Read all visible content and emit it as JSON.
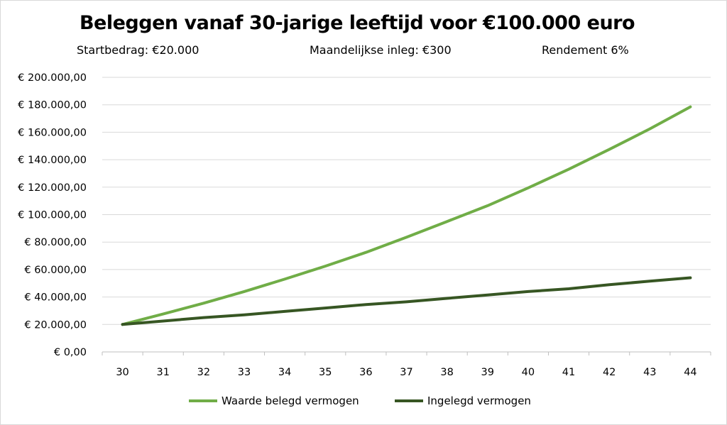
{
  "chart_data": {
    "type": "line",
    "title": "Beleggen vanaf 30-jarige leeftijd voor €100.000 euro",
    "subtitles": {
      "start": "Startbedrag: €20.000",
      "inleg": "Maandelijkse inleg: €300",
      "rendement": "Rendement 6%"
    },
    "x": [
      30,
      31,
      32,
      33,
      34,
      35,
      36,
      37,
      38,
      39,
      40,
      41,
      42,
      43,
      44
    ],
    "y_ticks": [
      "€ 0,00",
      "€ 20.000,00",
      "€ 40.000,00",
      "€ 60.000,00",
      "€ 80.000,00",
      "€ 100.000,00",
      "€ 120.000,00",
      "€ 140.000,00",
      "€ 160.000,00",
      "€ 180.000,00",
      "€ 200.000,00"
    ],
    "ylim": [
      0,
      200000
    ],
    "grid": true,
    "legend_position": "bottom",
    "series": [
      {
        "name": "Waarde belegd vermogen",
        "color": "#70ad47",
        "values": [
          20000,
          27600,
          35500,
          44000,
          53000,
          62500,
          72500,
          83500,
          95000,
          106500,
          119500,
          133000,
          147500,
          162500,
          178500
        ]
      },
      {
        "name": "Ingelegd vermogen",
        "color": "#375623",
        "values": [
          20000,
          22500,
          25000,
          27000,
          29500,
          32000,
          34500,
          36500,
          39000,
          41500,
          44000,
          46000,
          49000,
          51500,
          54000
        ]
      }
    ]
  }
}
